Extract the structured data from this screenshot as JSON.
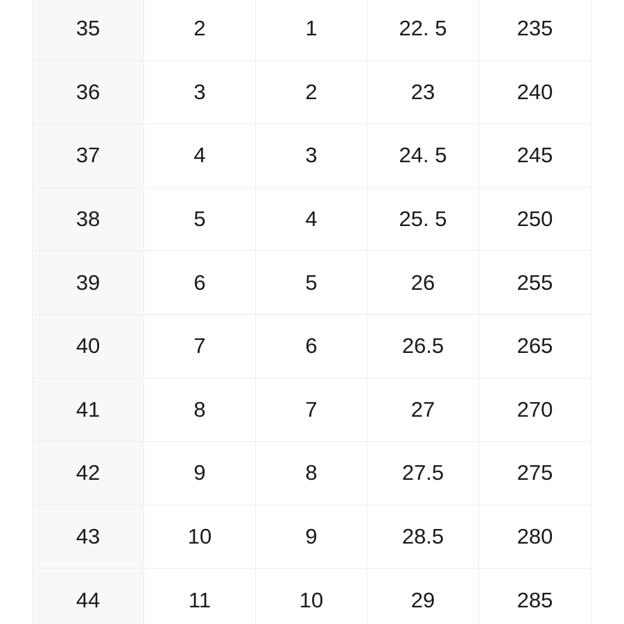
{
  "colors": {
    "page_bg": "#ffffff",
    "first_column_bg": "#f7f8fa",
    "grid_border": "#ececee",
    "cell_text": "#1a1a1a"
  },
  "table": {
    "rows": [
      [
        "35",
        "2",
        "1",
        "22. 5",
        "235"
      ],
      [
        "36",
        "3",
        "2",
        "23",
        "240"
      ],
      [
        "37",
        "4",
        "3",
        "24. 5",
        "245"
      ],
      [
        "38",
        "5",
        "4",
        "25. 5",
        "250"
      ],
      [
        "39",
        "6",
        "5",
        "26",
        "255"
      ],
      [
        "40",
        "7",
        "6",
        "26.5",
        "265"
      ],
      [
        "41",
        "8",
        "7",
        "27",
        "270"
      ],
      [
        "42",
        "9",
        "8",
        "27.5",
        "275"
      ],
      [
        "43",
        "10",
        "9",
        "28.5",
        "280"
      ],
      [
        "44",
        "11",
        "10",
        "29",
        "285"
      ]
    ]
  }
}
